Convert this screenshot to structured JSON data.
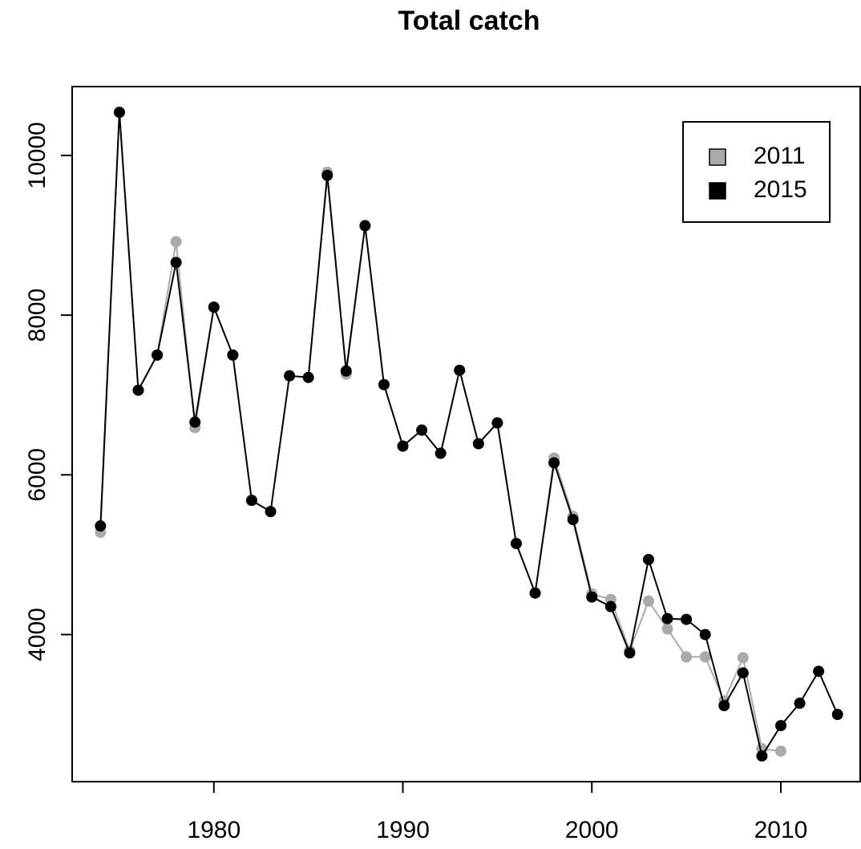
{
  "chart_data": {
    "type": "line",
    "title": "Total catch",
    "x": [
      1974,
      1975,
      1976,
      1977,
      1978,
      1979,
      1980,
      1981,
      1982,
      1983,
      1984,
      1985,
      1986,
      1987,
      1988,
      1989,
      1990,
      1991,
      1992,
      1993,
      1994,
      1995,
      1996,
      1997,
      1998,
      1999,
      2000,
      2001,
      2002,
      2003,
      2004,
      2005,
      2006,
      2007,
      2008,
      2009,
      2010,
      2011,
      2012,
      2013
    ],
    "series": [
      {
        "name": "2011",
        "color": "#aaaaaa",
        "values": [
          5280,
          10540,
          7060,
          7500,
          8920,
          6590,
          8100,
          7500,
          5680,
          5540,
          7240,
          7220,
          9790,
          7260,
          9120,
          7130,
          6360,
          6560,
          6270,
          7310,
          6390,
          6650,
          5140,
          4520,
          6210,
          5480,
          4510,
          4440,
          3800,
          4420,
          4070,
          3720,
          3720,
          3170,
          3710,
          2570,
          2540,
          null,
          null,
          null
        ]
      },
      {
        "name": "2015",
        "color": "#000000",
        "values": [
          5360,
          10540,
          7060,
          7500,
          8660,
          6660,
          8100,
          7500,
          5680,
          5540,
          7240,
          7220,
          9750,
          7300,
          9120,
          7130,
          6360,
          6560,
          6270,
          7310,
          6390,
          6650,
          5140,
          4520,
          6150,
          5440,
          4470,
          4350,
          3770,
          4940,
          4200,
          4190,
          4000,
          3110,
          3520,
          2480,
          2860,
          3140,
          3540,
          3000
        ]
      }
    ],
    "xlim": [
      1972.5,
      2014.2
    ],
    "xticks": [
      1980,
      1990,
      2000,
      2010
    ],
    "ylim": [
      2158,
      10862
    ],
    "yticks": [
      4000,
      6000,
      8000,
      10000
    ],
    "legend": "top-right"
  }
}
